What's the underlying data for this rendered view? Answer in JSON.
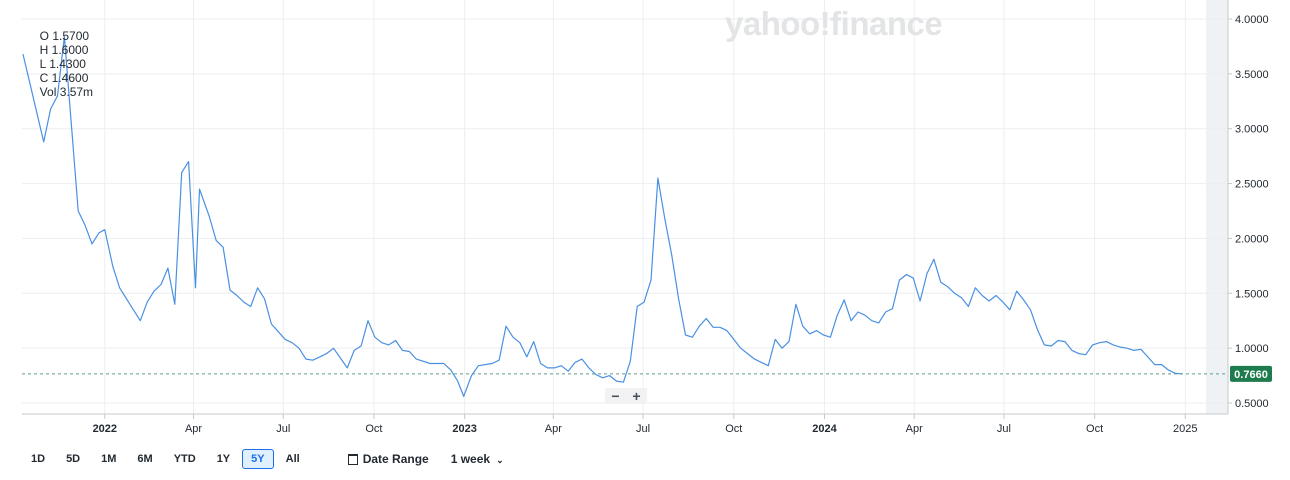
{
  "ohlc": {
    "open": "O 1.5700",
    "high": "H 1.6000",
    "low": "L 1.4300",
    "close": "C 1.4600",
    "volume": "Vol 3.57m"
  },
  "watermark": "yahoo!finance",
  "zoom": {
    "minus": "−",
    "plus": "+"
  },
  "toolbar": {
    "ranges": [
      "1D",
      "5D",
      "1M",
      "6M",
      "YTD",
      "1Y",
      "5Y",
      "All"
    ],
    "active_range": "5Y",
    "date_range_label": "Date Range",
    "interval_label": "1 week",
    "interval_chevron": "⌄"
  },
  "colors": {
    "line": "#4a90e2",
    "price_tag": "#1e7b4e",
    "grid": "#eceef0",
    "axis": "#c6c9cc",
    "future_band": "#eef2f5"
  },
  "chart_data": {
    "type": "line",
    "interval": "weekly",
    "y_axis_side": "right",
    "ylim": [
      0.4,
      4.1
    ],
    "y_ticks": [
      "0.5000",
      "1.0000",
      "1.5000",
      "2.0000",
      "2.5000",
      "3.0000",
      "3.5000",
      "4.0000"
    ],
    "x_ticks": [
      {
        "label": "2022",
        "date": "2022-01-01",
        "bold": true
      },
      {
        "label": "Apr",
        "date": "2022-04-01"
      },
      {
        "label": "Jul",
        "date": "2022-07-01"
      },
      {
        "label": "Oct",
        "date": "2022-10-01"
      },
      {
        "label": "2023",
        "date": "2023-01-01",
        "bold": true
      },
      {
        "label": "Apr",
        "date": "2023-04-01"
      },
      {
        "label": "Jul",
        "date": "2023-07-01"
      },
      {
        "label": "Oct",
        "date": "2023-10-01"
      },
      {
        "label": "2024",
        "date": "2024-01-01",
        "bold": true
      },
      {
        "label": "Apr",
        "date": "2024-04-01"
      },
      {
        "label": "Jul",
        "date": "2024-07-01"
      },
      {
        "label": "Oct",
        "date": "2024-10-01"
      },
      {
        "label": "2025",
        "date": "2025-01-01"
      }
    ],
    "x_start": "2021-10-09",
    "x_end": "2025-01-22",
    "last_price": 0.766,
    "last_price_label": "0.7660",
    "series": [
      {
        "points": [
          [
            "2021-10-10",
            3.68
          ],
          [
            "2021-10-31",
            2.88
          ],
          [
            "2021-11-07",
            3.18
          ],
          [
            "2021-11-14",
            3.3
          ],
          [
            "2021-11-21",
            3.84
          ],
          [
            "2021-12-05",
            2.25
          ],
          [
            "2021-12-12",
            2.12
          ],
          [
            "2021-12-19",
            1.95
          ],
          [
            "2021-12-26",
            2.05
          ],
          [
            "2022-01-01",
            2.08
          ],
          [
            "2022-01-09",
            1.75
          ],
          [
            "2022-01-16",
            1.55
          ],
          [
            "2022-01-30",
            1.35
          ],
          [
            "2022-02-06",
            1.25
          ],
          [
            "2022-02-13",
            1.42
          ],
          [
            "2022-02-20",
            1.52
          ],
          [
            "2022-02-27",
            1.58
          ],
          [
            "2022-03-06",
            1.73
          ],
          [
            "2022-03-13",
            1.4
          ],
          [
            "2022-03-20",
            2.6
          ],
          [
            "2022-03-27",
            2.7
          ],
          [
            "2022-04-03",
            1.55
          ],
          [
            "2022-04-07",
            2.45
          ],
          [
            "2022-04-17",
            2.2
          ],
          [
            "2022-04-24",
            1.98
          ],
          [
            "2022-05-01",
            1.92
          ],
          [
            "2022-05-08",
            1.53
          ],
          [
            "2022-05-15",
            1.48
          ],
          [
            "2022-05-22",
            1.42
          ],
          [
            "2022-05-29",
            1.38
          ],
          [
            "2022-06-05",
            1.55
          ],
          [
            "2022-06-12",
            1.45
          ],
          [
            "2022-06-19",
            1.22
          ],
          [
            "2022-06-26",
            1.15
          ],
          [
            "2022-07-03",
            1.08
          ],
          [
            "2022-07-10",
            1.05
          ],
          [
            "2022-07-17",
            1.0
          ],
          [
            "2022-07-24",
            0.9
          ],
          [
            "2022-07-31",
            0.89
          ],
          [
            "2022-08-07",
            0.92
          ],
          [
            "2022-08-14",
            0.95
          ],
          [
            "2022-08-21",
            1.0
          ],
          [
            "2022-09-04",
            0.82
          ],
          [
            "2022-09-11",
            0.98
          ],
          [
            "2022-09-18",
            1.02
          ],
          [
            "2022-09-25",
            1.25
          ],
          [
            "2022-10-02",
            1.1
          ],
          [
            "2022-10-09",
            1.05
          ],
          [
            "2022-10-16",
            1.03
          ],
          [
            "2022-10-23",
            1.07
          ],
          [
            "2022-10-30",
            0.98
          ],
          [
            "2022-11-06",
            0.97
          ],
          [
            "2022-11-13",
            0.9
          ],
          [
            "2022-11-27",
            0.86
          ],
          [
            "2022-12-11",
            0.86
          ],
          [
            "2022-12-18",
            0.8
          ],
          [
            "2022-12-25",
            0.7
          ],
          [
            "2022-12-31",
            0.56
          ],
          [
            "2023-01-08",
            0.75
          ],
          [
            "2023-01-15",
            0.84
          ],
          [
            "2023-01-29",
            0.86
          ],
          [
            "2023-02-05",
            0.89
          ],
          [
            "2023-02-12",
            1.2
          ],
          [
            "2023-02-19",
            1.1
          ],
          [
            "2023-02-26",
            1.05
          ],
          [
            "2023-03-05",
            0.92
          ],
          [
            "2023-03-12",
            1.06
          ],
          [
            "2023-03-19",
            0.86
          ],
          [
            "2023-03-26",
            0.82
          ],
          [
            "2023-04-02",
            0.82
          ],
          [
            "2023-04-09",
            0.84
          ],
          [
            "2023-04-16",
            0.79
          ],
          [
            "2023-04-23",
            0.87
          ],
          [
            "2023-04-30",
            0.9
          ],
          [
            "2023-05-07",
            0.82
          ],
          [
            "2023-05-14",
            0.76
          ],
          [
            "2023-05-21",
            0.73
          ],
          [
            "2023-05-28",
            0.75
          ],
          [
            "2023-06-04",
            0.7
          ],
          [
            "2023-06-11",
            0.69
          ],
          [
            "2023-06-18",
            0.88
          ],
          [
            "2023-06-25",
            1.38
          ],
          [
            "2023-07-02",
            1.42
          ],
          [
            "2023-07-09",
            1.62
          ],
          [
            "2023-07-16",
            2.55
          ],
          [
            "2023-07-23",
            2.18
          ],
          [
            "2023-07-30",
            1.85
          ],
          [
            "2023-08-06",
            1.45
          ],
          [
            "2023-08-13",
            1.12
          ],
          [
            "2023-08-20",
            1.1
          ],
          [
            "2023-08-27",
            1.2
          ],
          [
            "2023-09-03",
            1.27
          ],
          [
            "2023-09-10",
            1.19
          ],
          [
            "2023-09-17",
            1.19
          ],
          [
            "2023-09-24",
            1.16
          ],
          [
            "2023-10-01",
            1.08
          ],
          [
            "2023-10-08",
            1.0
          ],
          [
            "2023-10-15",
            0.95
          ],
          [
            "2023-10-22",
            0.9
          ],
          [
            "2023-10-29",
            0.87
          ],
          [
            "2023-11-05",
            0.84
          ],
          [
            "2023-11-12",
            1.08
          ],
          [
            "2023-11-19",
            1.0
          ],
          [
            "2023-11-26",
            1.06
          ],
          [
            "2023-12-03",
            1.4
          ],
          [
            "2023-12-10",
            1.2
          ],
          [
            "2023-12-17",
            1.13
          ],
          [
            "2023-12-24",
            1.16
          ],
          [
            "2023-12-31",
            1.12
          ],
          [
            "2024-01-07",
            1.1
          ],
          [
            "2024-01-14",
            1.3
          ],
          [
            "2024-01-21",
            1.44
          ],
          [
            "2024-01-28",
            1.25
          ],
          [
            "2024-02-04",
            1.33
          ],
          [
            "2024-02-11",
            1.3
          ],
          [
            "2024-02-18",
            1.25
          ],
          [
            "2024-02-25",
            1.23
          ],
          [
            "2024-03-03",
            1.33
          ],
          [
            "2024-03-10",
            1.36
          ],
          [
            "2024-03-17",
            1.62
          ],
          [
            "2024-03-24",
            1.67
          ],
          [
            "2024-03-31",
            1.64
          ],
          [
            "2024-04-07",
            1.43
          ],
          [
            "2024-04-14",
            1.68
          ],
          [
            "2024-04-21",
            1.81
          ],
          [
            "2024-04-28",
            1.6
          ],
          [
            "2024-05-05",
            1.56
          ],
          [
            "2024-05-12",
            1.5
          ],
          [
            "2024-05-19",
            1.46
          ],
          [
            "2024-05-26",
            1.38
          ],
          [
            "2024-06-02",
            1.55
          ],
          [
            "2024-06-09",
            1.48
          ],
          [
            "2024-06-16",
            1.43
          ],
          [
            "2024-06-23",
            1.48
          ],
          [
            "2024-06-30",
            1.42
          ],
          [
            "2024-07-07",
            1.35
          ],
          [
            "2024-07-14",
            1.52
          ],
          [
            "2024-07-21",
            1.44
          ],
          [
            "2024-07-28",
            1.35
          ],
          [
            "2024-08-04",
            1.17
          ],
          [
            "2024-08-11",
            1.03
          ],
          [
            "2024-08-18",
            1.02
          ],
          [
            "2024-08-25",
            1.07
          ],
          [
            "2024-09-01",
            1.06
          ],
          [
            "2024-09-08",
            0.98
          ],
          [
            "2024-09-15",
            0.95
          ],
          [
            "2024-09-22",
            0.94
          ],
          [
            "2024-09-29",
            1.03
          ],
          [
            "2024-10-06",
            1.05
          ],
          [
            "2024-10-13",
            1.06
          ],
          [
            "2024-10-20",
            1.03
          ],
          [
            "2024-10-27",
            1.01
          ],
          [
            "2024-11-03",
            1.0
          ],
          [
            "2024-11-10",
            0.98
          ],
          [
            "2024-11-17",
            0.99
          ],
          [
            "2024-11-24",
            0.92
          ],
          [
            "2024-12-01",
            0.85
          ],
          [
            "2024-12-08",
            0.85
          ],
          [
            "2024-12-15",
            0.8
          ],
          [
            "2024-12-22",
            0.77
          ],
          [
            "2024-12-29",
            0.766
          ]
        ]
      }
    ]
  }
}
